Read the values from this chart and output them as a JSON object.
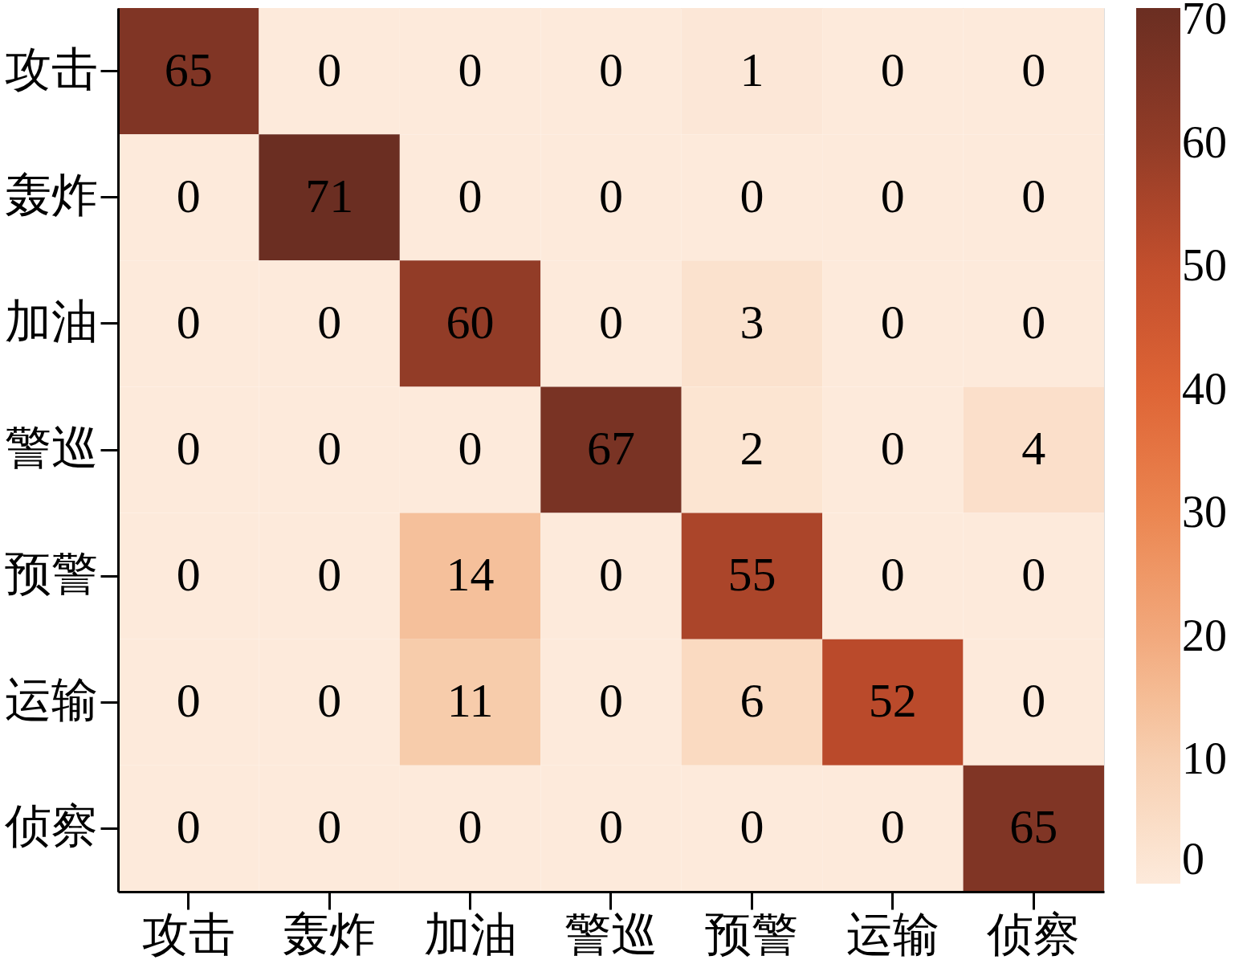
{
  "chart_data": {
    "type": "heatmap",
    "categories": [
      "攻击",
      "轰炸",
      "加油",
      "警巡",
      "预警",
      "运输",
      "侦察"
    ],
    "y_categories": [
      "攻击",
      "轰炸",
      "加油",
      "警巡",
      "预警",
      "运输",
      "侦察"
    ],
    "cells": [
      [
        65,
        0,
        0,
        0,
        1,
        0,
        0
      ],
      [
        0,
        71,
        0,
        0,
        0,
        0,
        0
      ],
      [
        0,
        0,
        60,
        0,
        3,
        0,
        0
      ],
      [
        0,
        0,
        0,
        67,
        2,
        0,
        4
      ],
      [
        0,
        0,
        14,
        0,
        55,
        0,
        0
      ],
      [
        0,
        0,
        11,
        0,
        6,
        52,
        0
      ],
      [
        0,
        0,
        0,
        0,
        0,
        0,
        65
      ]
    ],
    "data_labels": true,
    "clim": [
      0,
      71
    ],
    "cticks": [
      0,
      10,
      20,
      30,
      40,
      50,
      60,
      70
    ],
    "colors": [
      "#fdeadb",
      "#f7cfb0",
      "#f2a87c",
      "#eb844f",
      "#dd6335",
      "#c04d2c",
      "#8e3a26",
      "#6b2e22"
    ]
  }
}
